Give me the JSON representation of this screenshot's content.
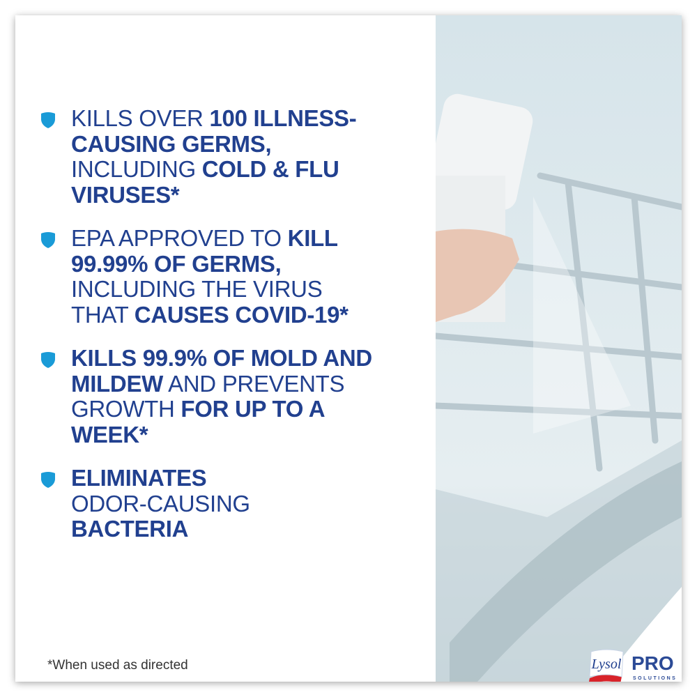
{
  "colors": {
    "text": "#21408f",
    "shield": "#1a9bd7"
  },
  "bullets": [
    {
      "icon": "shield-icon",
      "lines": [
        [
          {
            "t": "KILLS OVER ",
            "b": false
          },
          {
            "t": "100 ILLNESS-",
            "b": true
          }
        ],
        [
          {
            "t": "CAUSING GERMS,",
            "b": true
          }
        ],
        [
          {
            "t": "INCLUDING ",
            "b": false
          },
          {
            "t": "COLD & FLU",
            "b": true
          }
        ],
        [
          {
            "t": "VIRUSES*",
            "b": true
          }
        ]
      ]
    },
    {
      "icon": "shield-icon",
      "lines": [
        [
          {
            "t": "EPA APPROVED TO ",
            "b": false
          },
          {
            "t": "KILL",
            "b": true
          }
        ],
        [
          {
            "t": "99.99% OF GERMS,",
            "b": true
          }
        ],
        [
          {
            "t": "INCLUDING THE VIRUS",
            "b": false
          }
        ],
        [
          {
            "t": "THAT ",
            "b": false
          },
          {
            "t": "CAUSES COVID-19*",
            "b": true
          }
        ]
      ]
    },
    {
      "icon": "shield-icon",
      "lines": [
        [
          {
            "t": "KILLS 99.9% OF MOLD AND",
            "b": true
          }
        ],
        [
          {
            "t": "MILDEW",
            "b": true
          },
          {
            "t": " AND PREVENTS",
            "b": false
          }
        ],
        [
          {
            "t": "GROWTH ",
            "b": false
          },
          {
            "t": "FOR UP TO A",
            "b": true
          }
        ],
        [
          {
            "t": "WEEK*",
            "b": true
          }
        ]
      ]
    },
    {
      "icon": "shield-icon",
      "lines": [
        [
          {
            "t": "ELIMINATES",
            "b": true
          }
        ],
        [
          {
            "t": "ODOR-CAUSING",
            "b": false
          }
        ],
        [
          {
            "t": "BACTERIA",
            "b": true
          }
        ]
      ]
    }
  ],
  "footnote": "*When used as directed",
  "logo": {
    "brand": "Lysol",
    "pro": "PRO",
    "solutions": "SOLUTIONS"
  }
}
